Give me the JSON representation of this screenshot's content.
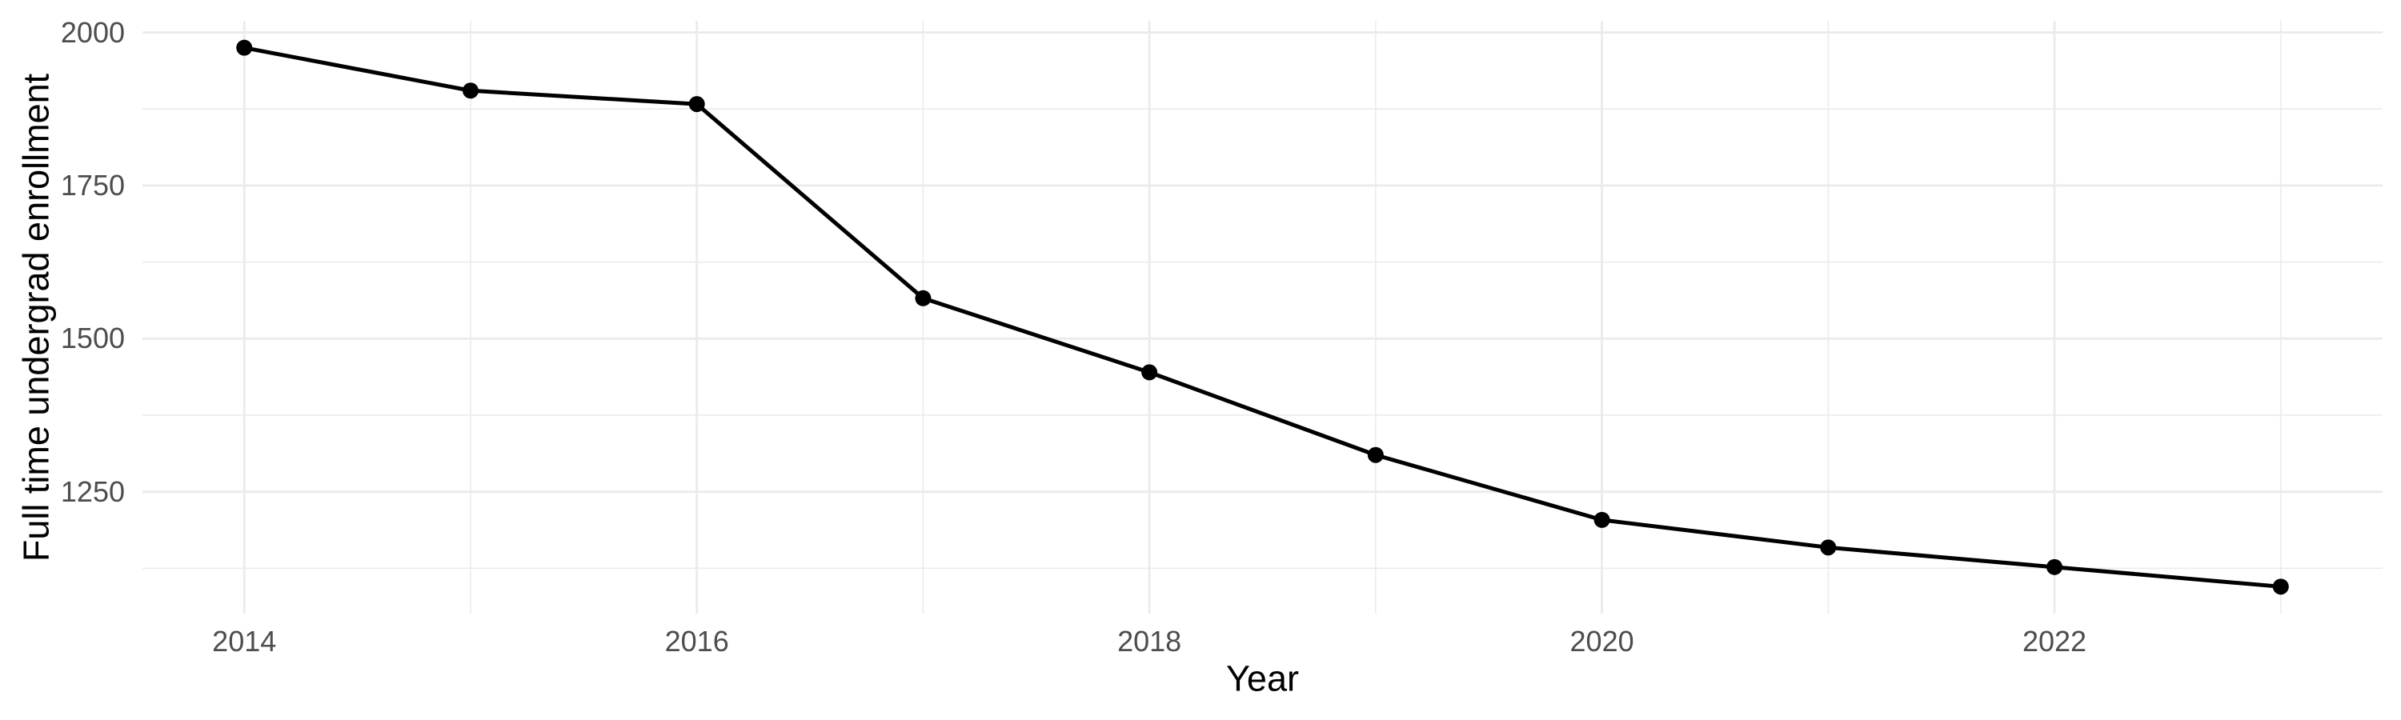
{
  "chart_data": {
    "type": "line",
    "title": "",
    "xlabel": "Year",
    "ylabel": "Full time undergrad enrollment",
    "x": [
      2014,
      2015,
      2016,
      2017,
      2018,
      2019,
      2020,
      2021,
      2022,
      2023
    ],
    "series": [
      {
        "name": "Full time undergrad enrollment",
        "values": [
          1975,
          1905,
          1883,
          1566,
          1445,
          1310,
          1204,
          1159,
          1127,
          1095
        ]
      }
    ],
    "xlim": [
      2013.55,
      2023.45
    ],
    "ylim": [
      1051,
      2019
    ],
    "x_major_ticks": [
      2014,
      2016,
      2018,
      2020,
      2022
    ],
    "x_minor_gridlines": [
      2015,
      2017,
      2019,
      2021,
      2023
    ],
    "y_major_ticks": [
      2000,
      1750,
      1500,
      1250
    ],
    "y_minor_gridlines": [
      1875,
      1625,
      1375,
      1125
    ],
    "grid": "major+minor, no axis lines, no tick marks",
    "legend": "none",
    "colors": {
      "line": "#000000",
      "point": "#000000",
      "grid": "#EBEBEB",
      "tick_label": "#4D4D4D",
      "axis_title": "#000000",
      "background": "#FFFFFF"
    }
  }
}
